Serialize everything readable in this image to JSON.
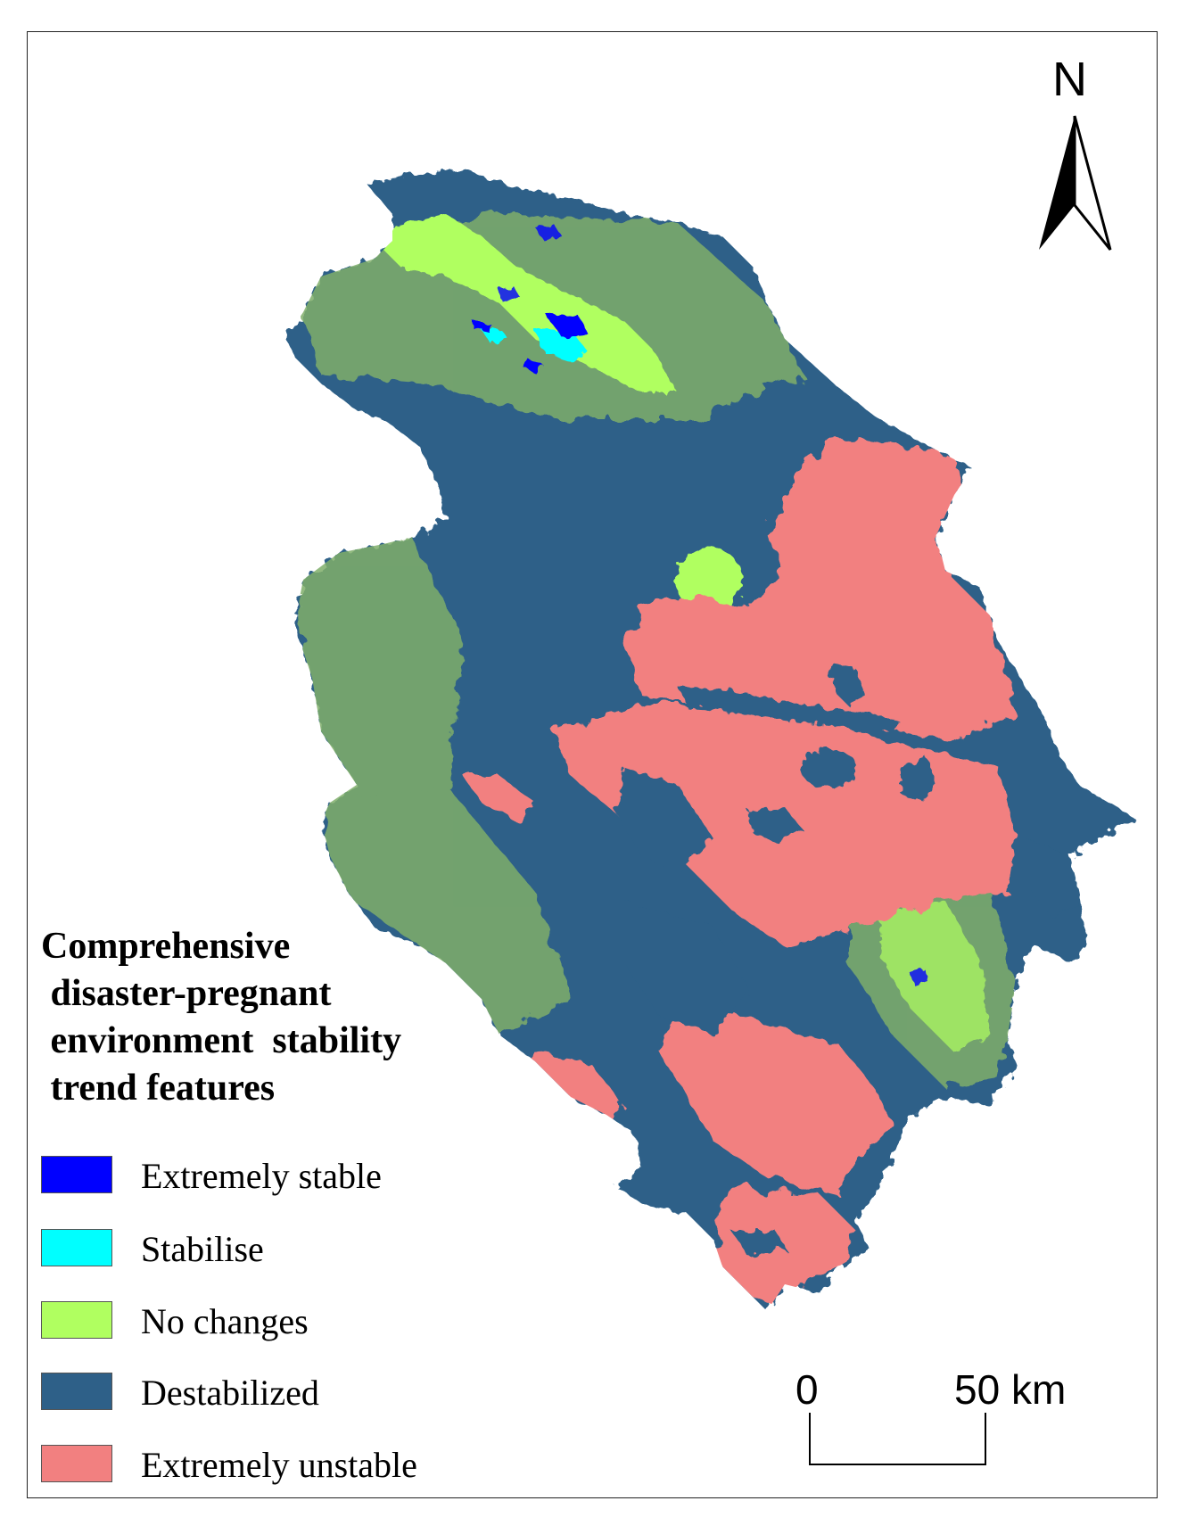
{
  "north_arrow": {
    "label": "N"
  },
  "legend": {
    "title": "Comprehensive\n disaster-pregnant\n environment  stability\n trend features",
    "items": [
      {
        "label": "Extremely stable",
        "color": "#0000ff"
      },
      {
        "label": "Stabilise",
        "color": "#00ffff"
      },
      {
        "label": "No changes",
        "color": "#b0ff60"
      },
      {
        "label": "Destabilized",
        "color": "#2e6088"
      },
      {
        "label": "Extremely unstable",
        "color": "#f28080"
      }
    ]
  },
  "scale_bar": {
    "start_label": "0",
    "end_label": "50 km"
  }
}
